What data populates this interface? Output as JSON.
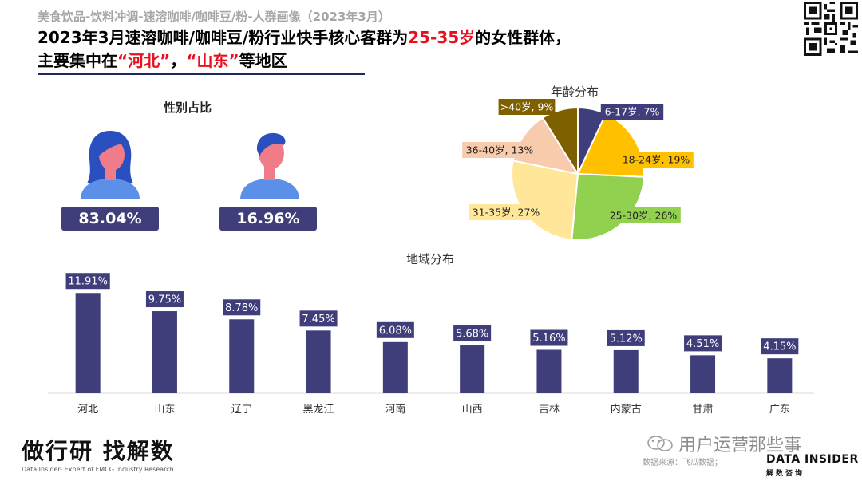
{
  "header": {
    "subtitle": "美食饮品-饮料冲调-速溶咖啡/咖啡豆/粉-人群画像（2023年3月）",
    "line1_pre": "2023年3月速溶咖啡/咖啡豆/粉行业快手核心客群为",
    "line1_hl": "25-35岁",
    "line1_post": "的女性群体，",
    "line2_pre": "主要集中在",
    "line2_hl1": "“河北”",
    "line2_mid": "，",
    "line2_hl2": "“山东”",
    "line2_post": "等地区"
  },
  "gender": {
    "title": "性别占比",
    "female_pct": "83.04%",
    "male_pct": "16.96%",
    "female_icon": "female-user-icon",
    "male_icon": "male-user-icon"
  },
  "footer": {
    "brand_cn": "做行研 找解数",
    "brand_en": "Data Insider- Expert of FMCG Industry Research",
    "source": "数据来源：飞瓜数据；",
    "watermark": "用户运营那些事",
    "logo": "DATA INSIDER",
    "logo_sub": "解数咨询"
  },
  "chart_data": [
    {
      "type": "pie",
      "title": "年龄分布",
      "categories": [
        "6-17岁",
        "18-24岁",
        "25-30岁",
        "31-35岁",
        "36-40岁",
        ">40岁"
      ],
      "values": [
        7,
        19,
        26,
        27,
        13,
        9
      ],
      "labels": [
        "6-17岁, 7%",
        "18-24岁, 19%",
        "25-30岁, 26%",
        "31-35岁, 27%",
        "36-40岁, 13%",
        ">40岁, 9%"
      ],
      "colors": [
        "#3f3d7a",
        "#ffc000",
        "#92d050",
        "#ffe699",
        "#f8cbad",
        "#7f6000"
      ],
      "label_text_colors": [
        "#ffffff",
        "#222222",
        "#222222",
        "#222222",
        "#222222",
        "#ffffff"
      ]
    },
    {
      "type": "bar",
      "title": "地域分布",
      "categories": [
        "河北",
        "山东",
        "辽宁",
        "黑龙江",
        "河南",
        "山西",
        "吉林",
        "内蒙古",
        "甘肃",
        "广东"
      ],
      "values": [
        11.91,
        9.75,
        8.78,
        7.45,
        6.08,
        5.68,
        5.16,
        5.12,
        4.51,
        4.15
      ],
      "value_labels": [
        "11.91%",
        "9.75%",
        "8.78%",
        "7.45%",
        "6.08%",
        "5.68%",
        "5.16%",
        "5.12%",
        "4.51%",
        "4.15%"
      ],
      "color": "#3f3d7a",
      "ylim": [
        0,
        12.5
      ]
    }
  ]
}
